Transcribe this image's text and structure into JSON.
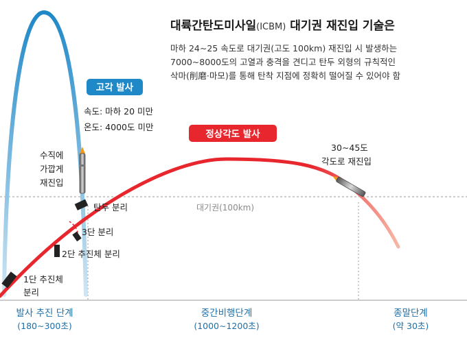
{
  "title": {
    "main": "대륙간탄도미사일",
    "abbr": "(ICBM)",
    "rest": " 대기권 재진입 기술은"
  },
  "description": [
    "마하 24∼25 속도로 대기권(고도 100km) 재진입 시 발생하는",
    "7000∼8000도의 고열과 충격을 견디고 탄두 외형의 규칙적인",
    "삭마(削磨·마모)를 통해 탄착 지점에 정확히 떨어질 수 있어야 함"
  ],
  "high_angle": {
    "label": "고각 발사",
    "speed": "속도: 마하 20 미만",
    "temp": "온도: 4000도 미만",
    "color": "#1f88c7"
  },
  "normal_angle": {
    "label": "정상각도 발사",
    "color": "#e8262e"
  },
  "annotations": {
    "vertical_reentry": [
      "수직에",
      "가깝게",
      "재진입"
    ],
    "warhead_sep": "탄두 분리",
    "stage3_sep": "3단 분리",
    "stage2_sep": "2단 추진체 분리",
    "stage1_sep": [
      "1단 추진체",
      "분리"
    ],
    "reentry_angle": [
      "30∼45도",
      "각도로 재진입"
    ]
  },
  "atmosphere": {
    "label": "대기권(100km)"
  },
  "phases": [
    {
      "name": "발사 추진 단계",
      "duration": "(180∼300초)"
    },
    {
      "name": "중간비행단계",
      "duration": "(1000∼1200초)"
    },
    {
      "name": "종말단계",
      "duration": "(약 30초)"
    }
  ]
}
